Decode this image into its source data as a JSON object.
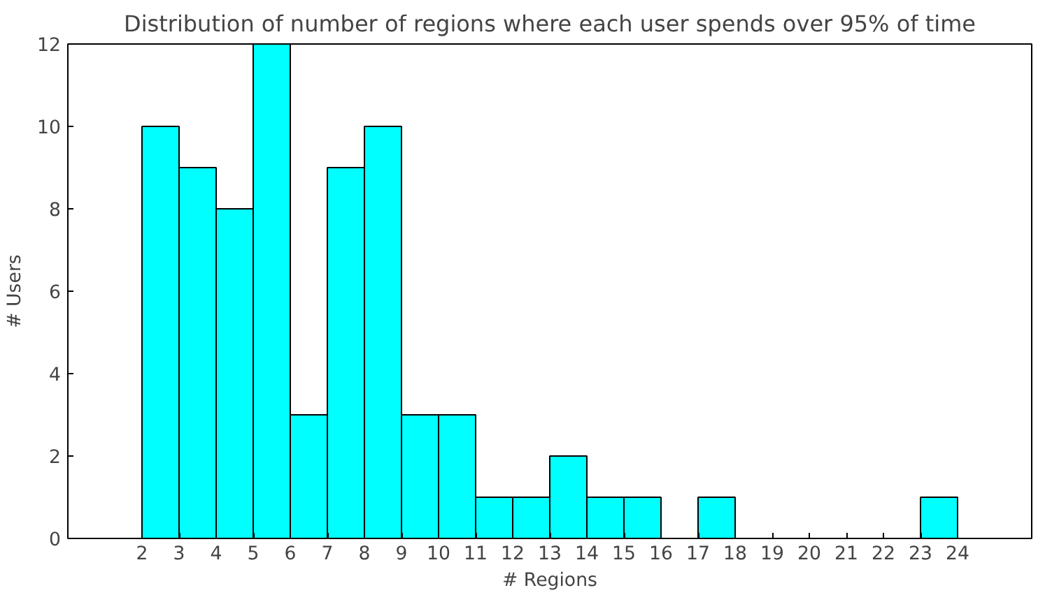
{
  "chart_data": {
    "type": "histogram",
    "title": "Distribution of number of regions where each user spends over 95% of time",
    "xlabel": "# Regions",
    "ylabel": "# Users",
    "bins": [
      2,
      3,
      4,
      5,
      6,
      7,
      8,
      9,
      10,
      11,
      12,
      13,
      14,
      15,
      16,
      17,
      18,
      19,
      20,
      21,
      22,
      23,
      24
    ],
    "values": [
      10,
      9,
      8,
      12,
      3,
      9,
      10,
      3,
      3,
      1,
      1,
      2,
      1,
      1,
      0,
      1,
      0,
      0,
      0,
      0,
      0,
      1
    ],
    "color": "#00ffff",
    "xlim": [
      0,
      26
    ],
    "ylim": [
      0,
      12
    ],
    "xticks": [
      2,
      3,
      4,
      5,
      6,
      7,
      8,
      9,
      10,
      11,
      12,
      13,
      14,
      15,
      16,
      17,
      18,
      19,
      20,
      21,
      22,
      23,
      24
    ],
    "yticks": [
      0,
      2,
      4,
      6,
      8,
      10,
      12
    ],
    "grid": false
  }
}
